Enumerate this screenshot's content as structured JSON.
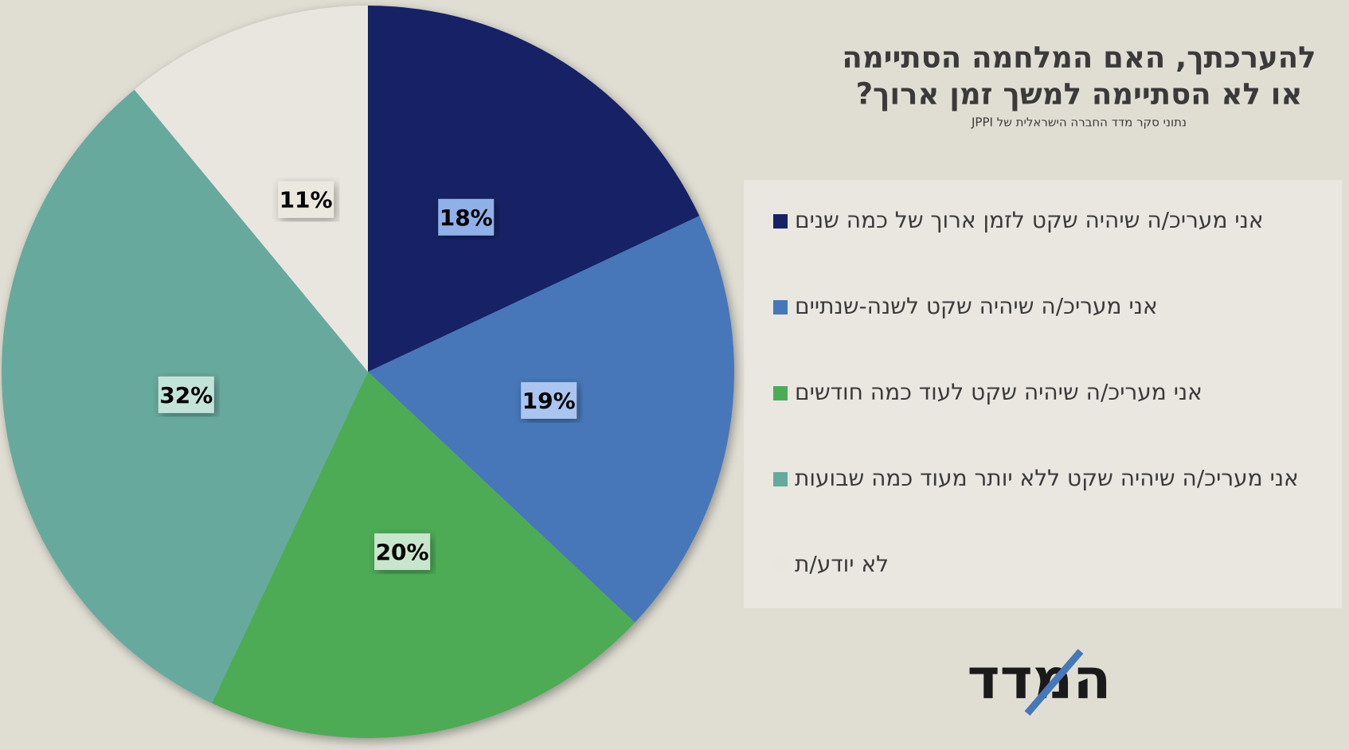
{
  "chart_data": {
    "type": "pie",
    "title": [
      "להערכתך, האם המלחמה הסתיימה",
      "או לא הסתיימה למשך זמן ארוך?"
    ],
    "subtitle": "נתוני סקר מדד החברה הישראלית של JPPI",
    "categories": [
      "אני מעריכ/ה שיהיה שקט לזמן ארוך של כמה שנים",
      "אני מעריכ/ה שיהיה שקט לשנה-שנתיים",
      "אני מעריכ/ה שיהיה שקט לעוד כמה חודשים",
      "אני מעריכ/ה שיהיה שקט ללא יותר מעוד כמה שבועות",
      "לא יודע/ת"
    ],
    "values": [
      18,
      19,
      20,
      32,
      11
    ],
    "value_labels": [
      "18%",
      "19%",
      "20%",
      "32%",
      "11%"
    ],
    "colors": [
      "#172165",
      "#4677b8",
      "#4dab57",
      "#68a99d",
      "#e9e6df"
    ],
    "logo": "המדד"
  }
}
